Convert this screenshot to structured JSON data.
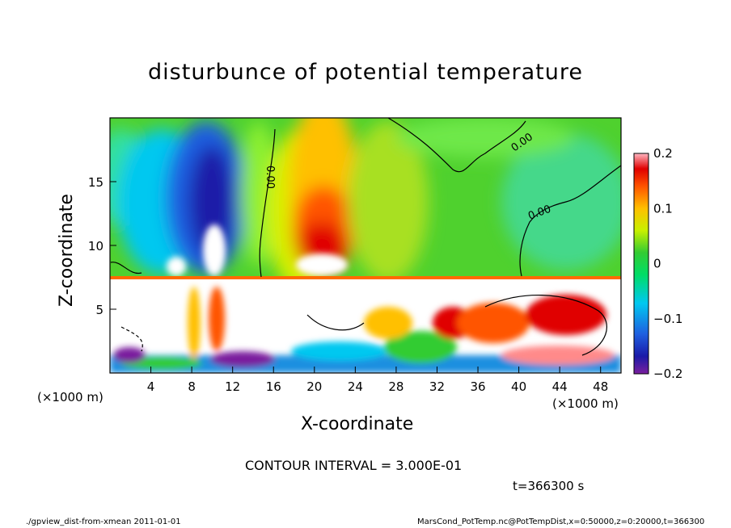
{
  "chart_data": {
    "type": "heatmap",
    "title": "disturbunce of potential temperature",
    "xlabel": "X-coordinate",
    "ylabel": "Z-coordinate",
    "x_unit_label": "(×1000 m)",
    "xlim": [
      0,
      50
    ],
    "ylim": [
      0,
      20
    ],
    "x_ticks": [
      4,
      8,
      12,
      16,
      20,
      24,
      28,
      32,
      36,
      40,
      44,
      48
    ],
    "y_ticks": [
      5,
      10,
      15
    ],
    "colorbar": {
      "range": [
        -0.2,
        0.2
      ],
      "ticks": [
        {
          "value": 0.2,
          "label": "0.2"
        },
        {
          "value": 0.1,
          "label": "0.1"
        },
        {
          "value": 0.0,
          "label": "0"
        },
        {
          "value": -0.1,
          "label": "−0.1"
        },
        {
          "value": -0.2,
          "label": "−0.2"
        }
      ]
    },
    "contour_label": "0.00",
    "contour_interval_text": "CONTOUR INTERVAL = 3.000E-01",
    "time_text": "t=366300 s",
    "features": [
      {
        "x": 9.5,
        "z": 14,
        "value": -0.18
      },
      {
        "x": 7,
        "z": 9.5,
        "value": -0.12
      },
      {
        "x": 11,
        "z": 10,
        "value": -0.12
      },
      {
        "x": 21,
        "z": 12,
        "value": 0.13
      },
      {
        "x": 21,
        "z": 9,
        "value": 0.21
      },
      {
        "x": 22,
        "z": 16,
        "value": 0.07
      },
      {
        "x": 44,
        "z": 12,
        "value": 0.0
      },
      {
        "x": 46,
        "z": 9,
        "value": -0.05
      }
    ],
    "colors": {
      "min": "#7a1f9e",
      "low": "#1f1fbf",
      "midlow": "#00c8f0",
      "zero": "#33cc33",
      "midhigh": "#f0f000",
      "high": "#f01010",
      "max": "#ffb6c1"
    }
  },
  "footer": {
    "left": "./gpview_dist-from-xmean   2011-01-01",
    "right": "MarsCond_PotTemp.nc@PotTempDist,x=0:50000,z=0:20000,t=366300"
  }
}
